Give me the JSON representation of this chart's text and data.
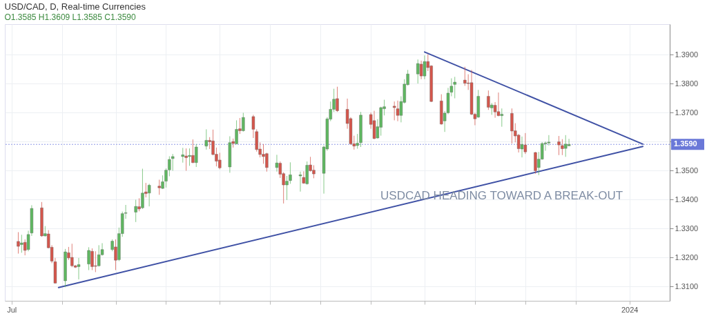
{
  "chart_data": {
    "type": "candlestick",
    "title": "USD/CAD, D, Real-time Currencies",
    "subtitle": "O1.3585 H1.3609 L1.3585 C1.3590",
    "x": [
      "2023-07-03",
      "2023-07-04",
      "2023-07-05",
      "2023-07-06",
      "2023-07-07",
      "2023-07-10",
      "2023-07-11",
      "2023-07-12",
      "2023-07-13",
      "2023-07-14",
      "2023-07-17",
      "2023-07-18",
      "2023-07-19",
      "2023-07-20",
      "2023-07-21",
      "2023-07-24",
      "2023-07-25",
      "2023-07-26",
      "2023-07-27",
      "2023-07-28",
      "2023-07-31",
      "2023-08-01",
      "2023-08-02",
      "2023-08-03",
      "2023-08-04",
      "2023-08-07",
      "2023-08-08",
      "2023-08-09",
      "2023-08-10",
      "2023-08-11",
      "2023-08-14",
      "2023-08-15",
      "2023-08-16",
      "2023-08-17",
      "2023-08-18",
      "2023-08-21",
      "2023-08-22",
      "2023-08-23",
      "2023-08-24",
      "2023-08-25",
      "2023-08-28",
      "2023-08-29",
      "2023-08-30",
      "2023-08-31",
      "2023-09-01",
      "2023-09-04",
      "2023-09-05",
      "2023-09-06",
      "2023-09-07",
      "2023-09-08",
      "2023-09-11",
      "2023-09-12",
      "2023-09-13",
      "2023-09-14",
      "2023-09-15",
      "2023-09-18",
      "2023-09-19",
      "2023-09-20",
      "2023-09-21",
      "2023-09-22",
      "2023-09-25",
      "2023-09-26",
      "2023-09-27",
      "2023-09-28",
      "2023-09-29",
      "2023-10-02",
      "2023-10-03",
      "2023-10-04",
      "2023-10-05",
      "2023-10-06",
      "2023-10-09",
      "2023-10-10",
      "2023-10-11",
      "2023-10-12",
      "2023-10-13",
      "2023-10-16",
      "2023-10-17",
      "2023-10-18",
      "2023-10-19",
      "2023-10-20",
      "2023-10-23",
      "2023-10-24",
      "2023-10-25",
      "2023-10-26",
      "2023-10-27",
      "2023-10-30",
      "2023-10-31",
      "2023-11-01",
      "2023-11-02",
      "2023-11-03",
      "2023-11-06",
      "2023-11-07",
      "2023-11-08",
      "2023-11-09",
      "2023-11-10",
      "2023-11-13",
      "2023-11-14",
      "2023-11-15",
      "2023-11-16",
      "2023-11-17",
      "2023-11-20",
      "2023-11-21",
      "2023-11-22",
      "2023-11-23",
      "2023-11-24",
      "2023-11-27",
      "2023-11-28",
      "2023-11-29",
      "2023-11-30",
      "2023-12-01",
      "2023-12-04",
      "2023-12-05",
      "2023-12-06",
      "2023-12-07",
      "2023-12-08",
      "2023-12-11",
      "2023-12-12",
      "2023-12-13",
      "2023-12-14"
    ],
    "ohlc": [
      [
        1.3255,
        1.3287,
        1.3213,
        1.3238
      ],
      [
        1.3244,
        1.3278,
        1.3216,
        1.325
      ],
      [
        1.3252,
        1.3262,
        1.3207,
        1.3224
      ],
      [
        1.3227,
        1.3292,
        1.3221,
        1.3279
      ],
      [
        1.3284,
        1.338,
        1.3274,
        1.3369
      ],
      [
        1.3371,
        1.3391,
        1.3271,
        1.3274
      ],
      [
        1.3274,
        1.3308,
        1.3272,
        1.3282
      ],
      [
        1.3281,
        1.3294,
        1.3231,
        1.3233
      ],
      [
        1.3235,
        1.3242,
        1.318,
        1.3187
      ],
      [
        1.3185,
        1.3198,
        1.311,
        1.3111
      ],
      [
        1.3119,
        1.3229,
        1.3097,
        1.3219
      ],
      [
        1.3216,
        1.3236,
        1.3191,
        1.3198
      ],
      [
        1.32,
        1.3247,
        1.3166,
        1.3171
      ],
      [
        1.3171,
        1.3174,
        1.3163,
        1.3166
      ],
      [
        1.3168,
        1.3198,
        1.3124,
        1.3175
      ],
      [
        1.3177,
        1.3235,
        1.3156,
        1.3224
      ],
      [
        1.3221,
        1.3231,
        1.3156,
        1.3168
      ],
      [
        1.3171,
        1.3221,
        1.3149,
        1.3169
      ],
      [
        1.3171,
        1.3242,
        1.3168,
        1.3209
      ],
      [
        1.3209,
        1.3249,
        1.3206,
        1.3227
      ],
      [
        1.3227,
        1.3262,
        1.3221,
        1.3256
      ],
      [
        1.3236,
        1.3262,
        1.3156,
        1.319
      ],
      [
        1.3192,
        1.3303,
        1.3187,
        1.3282
      ],
      [
        1.3282,
        1.3358,
        1.3271,
        1.3351
      ],
      [
        1.3352,
        1.3381,
        1.3333,
        1.3354
      ],
      [
        1.3356,
        1.3399,
        1.3322,
        1.3376
      ],
      [
        1.3375,
        1.3404,
        1.3359,
        1.3367
      ],
      [
        1.3371,
        1.3506,
        1.3367,
        1.3422
      ],
      [
        1.3426,
        1.3457,
        1.3407,
        1.342
      ],
      [
        1.3422,
        1.3454,
        1.3376,
        1.3449
      ],
      [
        1.3446,
        1.3468,
        1.3416,
        1.344
      ],
      [
        1.3438,
        1.3483,
        1.3436,
        1.3461
      ],
      [
        1.3463,
        1.3507,
        1.3441,
        1.3501
      ],
      [
        1.3502,
        1.3549,
        1.348,
        1.3538
      ],
      [
        1.3541,
        1.3557,
        1.3499,
        1.3548
      ],
      [
        1.3548,
        1.3578,
        1.3527,
        1.3554
      ],
      [
        1.355,
        1.3576,
        1.3499,
        1.3544
      ],
      [
        1.3548,
        1.3576,
        1.3516,
        1.3552
      ],
      [
        1.3552,
        1.3607,
        1.3525,
        1.3527
      ],
      [
        1.3527,
        1.3591,
        1.3512,
        1.3581
      ],
      [
        1.3584,
        1.3642,
        1.3572,
        1.3604
      ],
      [
        1.3604,
        1.3615,
        1.3574,
        1.3599
      ],
      [
        1.3602,
        1.3641,
        1.3552,
        1.3555
      ],
      [
        1.3556,
        1.3579,
        1.3514,
        1.3532
      ],
      [
        1.3536,
        1.3561,
        1.3504,
        1.3509
      ],
      [
        1.3512,
        1.3618,
        1.3492,
        1.3596
      ],
      [
        1.36,
        1.361,
        1.3579,
        1.3593
      ],
      [
        1.3592,
        1.3673,
        1.359,
        1.3642
      ],
      [
        1.3644,
        1.3681,
        1.3626,
        1.3637
      ],
      [
        1.3637,
        1.3699,
        1.3634,
        1.3683
      ],
      [
        1.3686,
        1.3692,
        1.3612,
        1.3642
      ],
      [
        1.3634,
        1.3642,
        1.3565,
        1.3572
      ],
      [
        1.3574,
        1.3597,
        1.3545,
        1.3555
      ],
      [
        1.3556,
        1.3591,
        1.3523,
        1.3548
      ],
      [
        1.3558,
        1.3561,
        1.3496,
        1.351
      ],
      [
        1.351,
        1.3554,
        1.3496,
        1.3526
      ],
      [
        1.3525,
        1.3531,
        1.3474,
        1.3487
      ],
      [
        1.3489,
        1.3494,
        1.3386,
        1.345
      ],
      [
        1.345,
        1.3481,
        1.3398,
        1.3463
      ],
      [
        1.3465,
        1.3528,
        1.3454,
        1.3485
      ],
      [
        1.3481,
        1.3496,
        1.3427,
        1.3485
      ],
      [
        1.3476,
        1.3497,
        1.3454,
        1.3456
      ],
      [
        1.3454,
        1.3531,
        1.3451,
        1.3518
      ],
      [
        1.3519,
        1.3547,
        1.3496,
        1.3499
      ],
      [
        1.3501,
        1.3518,
        1.3473,
        1.3488
      ],
      [
        1.349,
        1.3586,
        1.342,
        1.3581
      ],
      [
        1.3574,
        1.3684,
        1.3568,
        1.3678
      ],
      [
        1.3677,
        1.3738,
        1.367,
        1.3711
      ],
      [
        1.3711,
        1.3782,
        1.3702,
        1.3746
      ],
      [
        1.3748,
        1.3789,
        1.3702,
        1.3706
      ],
      [
        1.3711,
        1.3748,
        1.3644,
        1.3662
      ],
      [
        1.3679,
        1.3684,
        1.3588,
        1.3592
      ],
      [
        1.3592,
        1.362,
        1.3572,
        1.3584
      ],
      [
        1.3586,
        1.3626,
        1.3575,
        1.3594
      ],
      [
        1.3596,
        1.3702,
        1.3581,
        1.3691
      ],
      [
        1.3693,
        1.37,
        1.3644,
        1.3659
      ],
      [
        1.3672,
        1.3706,
        1.3608,
        1.361
      ],
      [
        1.3612,
        1.3677,
        1.361,
        1.3651
      ],
      [
        1.3649,
        1.372,
        1.362,
        1.3717
      ],
      [
        1.3713,
        1.3744,
        1.369,
        1.372
      ],
      [
        1.3722,
        1.3738,
        1.3673,
        1.3717
      ],
      [
        1.3713,
        1.3741,
        1.367,
        1.369
      ],
      [
        1.369,
        1.3756,
        1.3666,
        1.3738
      ],
      [
        1.3735,
        1.3815,
        1.3731,
        1.3798
      ],
      [
        1.3796,
        1.3847,
        1.3793,
        1.3833
      ],
      [
        1.3833,
        1.3883,
        1.38,
        1.3869
      ],
      [
        1.3867,
        1.3879,
        1.3815,
        1.3826
      ],
      [
        1.3826,
        1.3897,
        1.3815,
        1.3876
      ],
      [
        1.3876,
        1.3901,
        1.3843,
        1.3855
      ],
      [
        1.3861,
        1.3863,
        1.3736,
        1.3738
      ],
      [
        1.374,
        1.3763,
        1.3658,
        1.366
      ],
      [
        1.3671,
        1.3705,
        1.3633,
        1.3698
      ],
      [
        1.3699,
        1.3785,
        1.3694,
        1.3767
      ],
      [
        1.377,
        1.3818,
        1.3756,
        1.3791
      ],
      [
        1.3797,
        1.3823,
        1.3749,
        1.3805
      ],
      [
        1.3812,
        1.3858,
        1.3792,
        1.3801
      ],
      [
        1.3802,
        1.3832,
        1.3778,
        1.38
      ],
      [
        1.3803,
        1.3847,
        1.3691,
        1.3694
      ],
      [
        1.3694,
        1.3699,
        1.3656,
        1.3678
      ],
      [
        1.3684,
        1.3778,
        1.3682,
        1.3756
      ],
      [
        1.3756,
        1.3776,
        1.3709,
        1.3718
      ],
      [
        1.3716,
        1.3733,
        1.3692,
        1.3726
      ],
      [
        1.3725,
        1.3736,
        1.3682,
        1.3702
      ],
      [
        1.3703,
        1.3769,
        1.3687,
        1.3689
      ],
      [
        1.3689,
        1.3714,
        1.3651,
        1.3694
      ],
      [
        1.3697,
        1.3714,
        1.3593,
        1.3636
      ],
      [
        1.3637,
        1.3663,
        1.3597,
        1.3619
      ],
      [
        1.3622,
        1.3626,
        1.3562,
        1.3575
      ],
      [
        1.3574,
        1.3617,
        1.3545,
        1.359
      ],
      [
        1.3588,
        1.3629,
        1.3557,
        1.3564
      ],
      [
        1.3562,
        1.3564,
        1.3489,
        1.3499
      ],
      [
        1.351,
        1.3564,
        1.3484,
        1.3539
      ],
      [
        1.3539,
        1.3598,
        1.3537,
        1.3593
      ],
      [
        1.3592,
        1.36,
        1.3568,
        1.3595
      ],
      [
        1.3595,
        1.3622,
        1.3586,
        1.3598
      ],
      [
        1.3599,
        1.3619,
        1.3553,
        1.3588
      ],
      [
        1.3586,
        1.3608,
        1.3553,
        1.3575
      ],
      [
        1.3576,
        1.3622,
        1.3547,
        1.3591
      ],
      [
        1.3585,
        1.3609,
        1.3585,
        1.359
      ]
    ],
    "series": [
      {
        "type": "line",
        "color": "#3f51a5",
        "x": [
          "2023-11-01",
          "2024-01-05"
        ],
        "values": [
          1.3909,
          1.3591
        ]
      },
      {
        "type": "line",
        "color": "#3f51a5",
        "x": [
          "2023-07-15",
          "2024-01-05"
        ],
        "values": [
          1.3096,
          1.3583
        ]
      }
    ],
    "ref_lines": [
      {
        "axis": "y",
        "value": 1.359,
        "label": "1.3590",
        "color": "#8e99e6",
        "line_style": "dotted"
      }
    ],
    "annotations": [
      "USDCAD HEADING TOWARD A BREAK-OUT"
    ],
    "xlim": [
      "2023-06-29",
      "2024-01-13"
    ],
    "xticks": [
      {
        "value": "2023-07-01",
        "label": "Jul"
      },
      {
        "value": "2023-07-16",
        "label": null
      },
      {
        "value": "2023-08-01",
        "label": null
      },
      {
        "value": "2023-08-16",
        "label": null
      },
      {
        "value": "2023-09-01",
        "label": null
      },
      {
        "value": "2023-09-16",
        "label": null
      },
      {
        "value": "2023-10-01",
        "label": null
      },
      {
        "value": "2023-10-16",
        "label": null
      },
      {
        "value": "2023-11-01",
        "label": null
      },
      {
        "value": "2023-11-16",
        "label": null
      },
      {
        "value": "2023-12-01",
        "label": null
      },
      {
        "value": "2023-12-16",
        "label": null
      },
      {
        "value": "2024-01-01",
        "label": "2024"
      }
    ],
    "ylim": [
      1.305,
      1.4005
    ],
    "yticks": [
      {
        "value": 1.31,
        "label": "1.3100"
      },
      {
        "value": 1.32,
        "label": "1.3200"
      },
      {
        "value": 1.33,
        "label": "1.3300"
      },
      {
        "value": 1.34,
        "label": "1.3400"
      },
      {
        "value": 1.35,
        "label": "1.3500"
      },
      {
        "value": 1.36,
        "label": null
      },
      {
        "value": 1.37,
        "label": "1.3700"
      },
      {
        "value": 1.38,
        "label": "1.3800"
      },
      {
        "value": 1.39,
        "label": "1.3900"
      }
    ],
    "grid": true
  }
}
